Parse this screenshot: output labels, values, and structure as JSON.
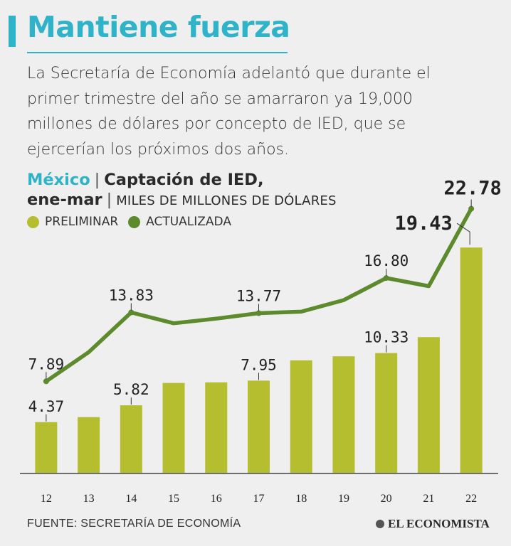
{
  "colors": {
    "accent": "#2fb3c8",
    "preliminar": "#b4be2f",
    "actualizada": "#5d8a2c",
    "text": "#2b2b2b"
  },
  "title": "Mantiene fuerza",
  "intro": "La Secretaría de Economía adelantó que durante el primer trimestre del año se amarraron ya 19,000 millones de dólares por concepto de IED, que se ejercerían los próximos dos años.",
  "header": {
    "country": "México",
    "separator": "|",
    "metric_part1": "Captación de IED,",
    "metric_part2": "ene-mar",
    "units": "MILES DE MILLONES DE DÓLARES"
  },
  "legend": [
    {
      "label": "PRELIMINAR",
      "color": "#b4be2f"
    },
    {
      "label": "ACTUALIZADA",
      "color": "#5d8a2c"
    }
  ],
  "chart_data": {
    "type": "bar",
    "categories": [
      "12",
      "13",
      "14",
      "15",
      "16",
      "17",
      "18",
      "19",
      "20",
      "21",
      "22"
    ],
    "series": [
      {
        "name": "PRELIMINAR",
        "type": "bar",
        "values": [
          4.37,
          4.8,
          5.82,
          7.75,
          7.8,
          7.95,
          9.7,
          10.05,
          10.33,
          11.7,
          19.43
        ],
        "labels": [
          "4.37",
          null,
          "5.82",
          null,
          null,
          "7.95",
          null,
          null,
          "10.33",
          null,
          "19.43"
        ]
      },
      {
        "name": "ACTUALIZADA",
        "type": "line",
        "values": [
          7.89,
          10.4,
          13.83,
          12.9,
          13.3,
          13.77,
          13.9,
          14.9,
          16.8,
          16.1,
          22.78
        ],
        "labels": [
          "7.89",
          null,
          "13.83",
          null,
          null,
          "13.77",
          null,
          null,
          "16.80",
          null,
          "22.78"
        ]
      }
    ],
    "ylim": [
      0,
      23
    ],
    "grid": false
  },
  "footer": {
    "source": "FUENTE: SECRETARÍA DE ECONOMÍA",
    "brand": "EL ECONOMISTA"
  }
}
